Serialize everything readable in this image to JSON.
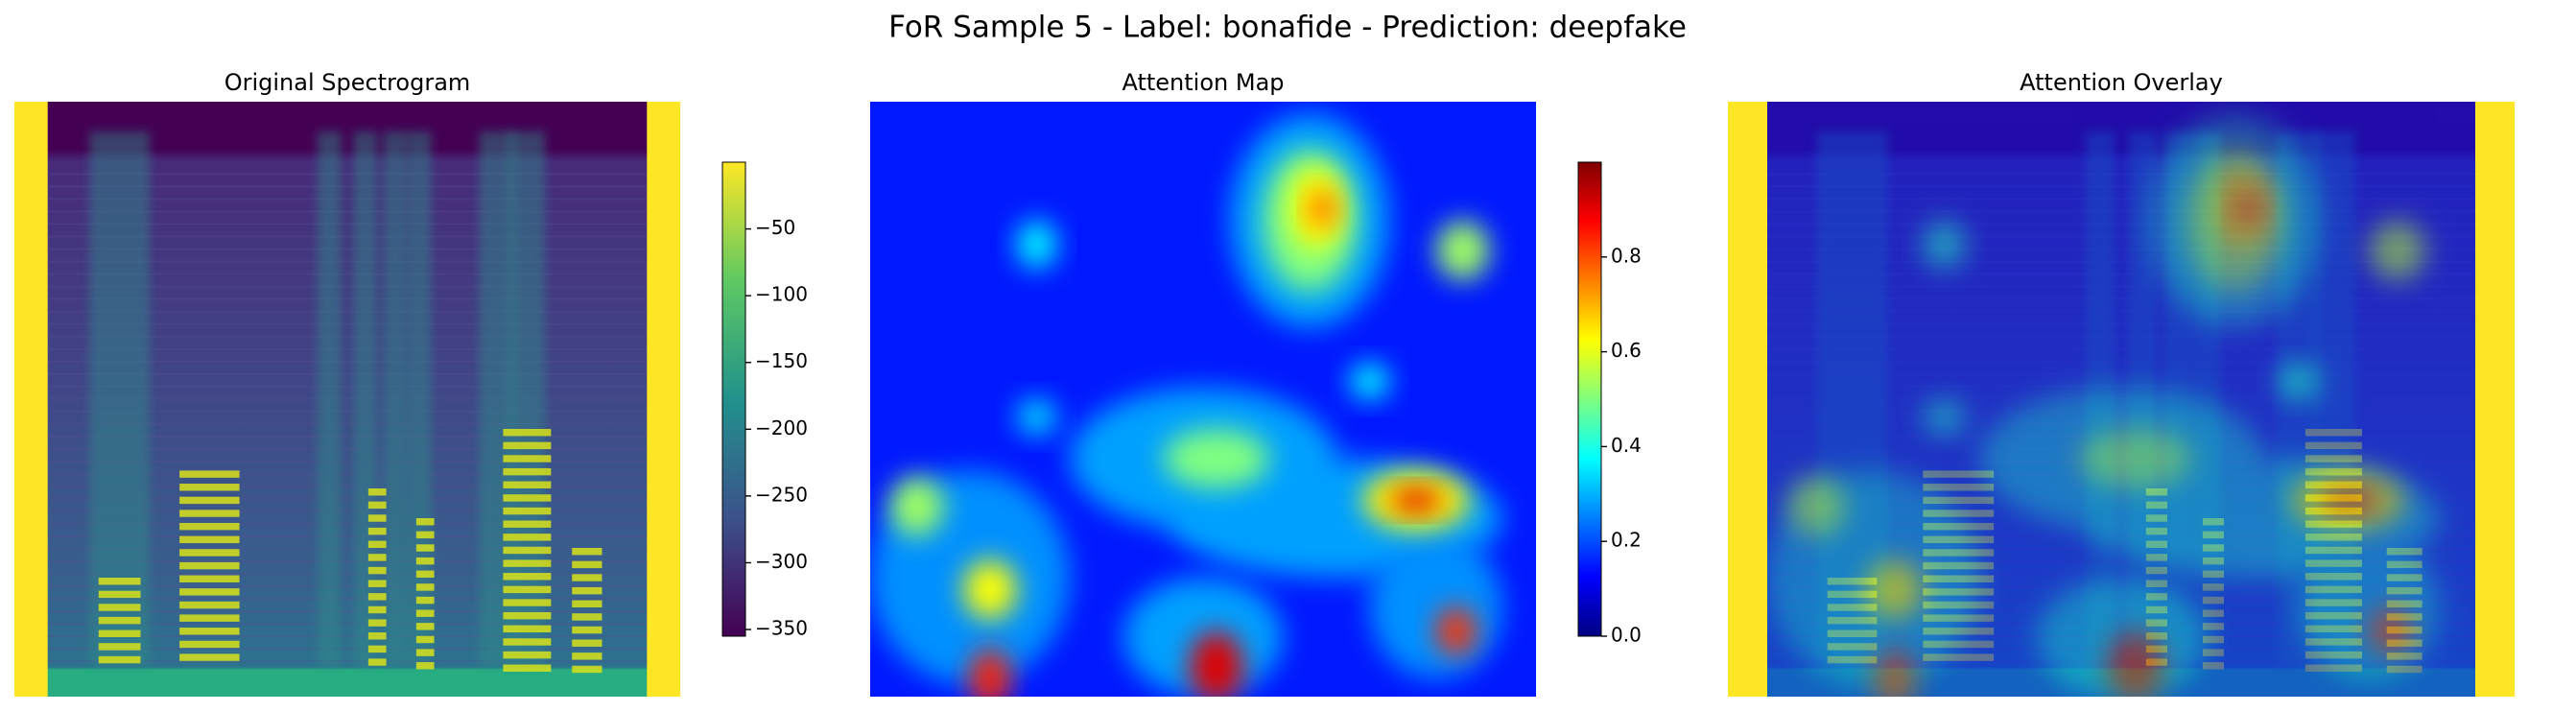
{
  "title": "FoR Sample 5 - Label: bonafide - Prediction: deepfake",
  "chart_data": [
    {
      "type": "image",
      "title": "Original Spectrogram",
      "colormap": "viridis",
      "clim": [
        -355,
        0
      ],
      "cticks": [
        {
          "value": -50,
          "label": "−50"
        },
        {
          "value": -100,
          "label": "−100"
        },
        {
          "value": -150,
          "label": "−150"
        },
        {
          "value": -200,
          "label": "−200"
        },
        {
          "value": -250,
          "label": "−250"
        },
        {
          "value": -300,
          "label": "−300"
        },
        {
          "value": -350,
          "label": "−350"
        }
      ]
    },
    {
      "type": "image",
      "title": "Attention Map",
      "colormap": "jet",
      "clim": [
        0,
        1
      ],
      "cticks": [
        {
          "value": 0,
          "label": "0.0"
        },
        {
          "value": 0.2,
          "label": "0.2"
        },
        {
          "value": 0.4,
          "label": "0.4"
        },
        {
          "value": 0.6,
          "label": "0.6"
        },
        {
          "value": 0.8,
          "label": "0.8"
        }
      ]
    },
    {
      "type": "overlay",
      "title": "Attention Overlay"
    }
  ]
}
